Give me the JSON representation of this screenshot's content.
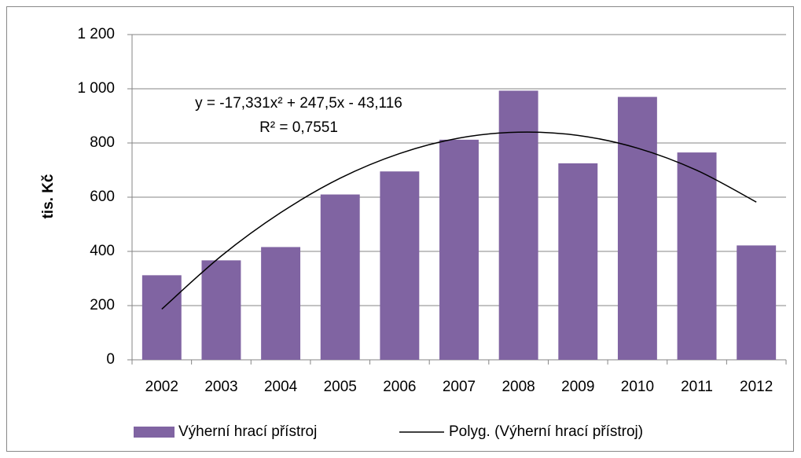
{
  "chart_data": {
    "type": "bar",
    "y_label": "tis. Kč",
    "annotations": [
      "y = -17,331x² + 247,5x - 43,116",
      "R² = 0,7551"
    ],
    "categories": [
      "2002",
      "2003",
      "2004",
      "2005",
      "2006",
      "2007",
      "2008",
      "2009",
      "2010",
      "2011",
      "2012"
    ],
    "series": [
      {
        "name": "Výherní hrací přístroj",
        "type": "bar",
        "color": "#8064a2",
        "values": [
          312,
          367,
          416,
          610,
          695,
          812,
          993,
          725,
          970,
          765,
          422
        ]
      },
      {
        "name": "Polyg. (Výherní hrací přístroj)",
        "type": "line",
        "color": "#000000",
        "values": [
          187,
          383,
          543,
          670,
          761,
          818,
          840,
          828,
          781,
          699,
          582
        ]
      }
    ],
    "ylim": [
      0,
      1200
    ],
    "yticks": [
      0,
      200,
      400,
      600,
      800,
      {
        "value": 1000,
        "label": "1 000"
      },
      {
        "value": 1200,
        "label": "1 200"
      }
    ],
    "grid": true,
    "legend": "bottom"
  }
}
